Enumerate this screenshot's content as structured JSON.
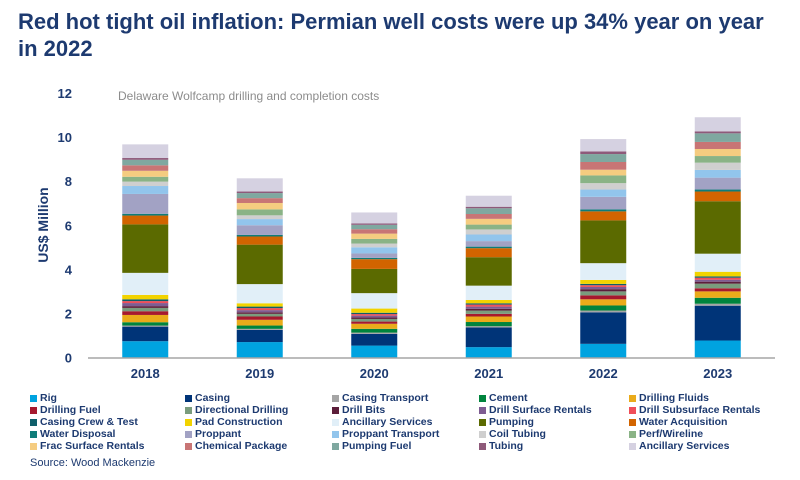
{
  "title": "Red hot tight oil inflation: Permian well costs were up 34% year on year in 2022",
  "source": "Source: Wood Mackenzie",
  "chart_data": {
    "type": "bar",
    "stacked": true,
    "title": "Delaware Wolfcamp drilling and completion costs",
    "xlabel": "",
    "ylabel": "US$ Million",
    "ylim": [
      0,
      12
    ],
    "yticks": [
      0,
      2,
      4,
      6,
      8,
      10,
      12
    ],
    "categories": [
      "2018",
      "2019",
      "2020",
      "2021",
      "2022",
      "2023"
    ],
    "legend_position": "bottom",
    "series": [
      {
        "name": "Rig",
        "color": "#00A3E0",
        "values": [
          0.74,
          0.7,
          0.54,
          0.47,
          0.62,
          0.77
        ]
      },
      {
        "name": "Casing",
        "color": "#003478",
        "values": [
          0.66,
          0.55,
          0.53,
          0.89,
          1.43,
          1.58
        ]
      },
      {
        "name": "Casing Transport",
        "color": "#A5A5A5",
        "values": [
          0.05,
          0.05,
          0.06,
          0.06,
          0.08,
          0.09
        ]
      },
      {
        "name": "Cement",
        "color": "#00843D",
        "values": [
          0.15,
          0.15,
          0.17,
          0.19,
          0.23,
          0.27
        ]
      },
      {
        "name": "Drilling Fluids",
        "color": "#EAAB1A",
        "values": [
          0.33,
          0.26,
          0.23,
          0.25,
          0.28,
          0.29
        ]
      },
      {
        "name": "Drilling Fuel",
        "color": "#A6192E",
        "values": [
          0.17,
          0.15,
          0.1,
          0.12,
          0.18,
          0.14
        ]
      },
      {
        "name": "Directional Drilling",
        "color": "#7A9C7D",
        "values": [
          0.15,
          0.12,
          0.12,
          0.15,
          0.18,
          0.21
        ]
      },
      {
        "name": "Drill Bits",
        "color": "#5C1E3A",
        "values": [
          0.08,
          0.07,
          0.07,
          0.08,
          0.1,
          0.09
        ]
      },
      {
        "name": "Drill Surface Rentals",
        "color": "#7E5C92",
        "values": [
          0.14,
          0.1,
          0.08,
          0.1,
          0.1,
          0.09
        ]
      },
      {
        "name": "Drill Subsurface Rentals",
        "color": "#F04E58",
        "values": [
          0.09,
          0.09,
          0.07,
          0.09,
          0.08,
          0.09
        ]
      },
      {
        "name": "Casing Crew & Test",
        "color": "#0F5F6A",
        "values": [
          0.08,
          0.07,
          0.06,
          0.06,
          0.06,
          0.06
        ]
      },
      {
        "name": "Pad Construction",
        "color": "#F2D300",
        "values": [
          0.2,
          0.15,
          0.19,
          0.15,
          0.18,
          0.21
        ]
      },
      {
        "name": "Ancillary Services",
        "color": "#E1EFF8",
        "values": [
          1.0,
          0.87,
          0.7,
          0.65,
          0.76,
          0.82
        ]
      },
      {
        "name": "Pumping",
        "color": "#5B6A00",
        "values": [
          2.2,
          1.79,
          1.1,
          1.29,
          1.94,
          2.38
        ]
      },
      {
        "name": "Water Acquisition",
        "color": "#D26400",
        "values": [
          0.4,
          0.37,
          0.44,
          0.41,
          0.41,
          0.44
        ]
      },
      {
        "name": "Water Disposal",
        "color": "#0E7C78",
        "values": [
          0.08,
          0.07,
          0.06,
          0.07,
          0.09,
          0.09
        ]
      },
      {
        "name": "Proppant",
        "color": "#A2A2C4",
        "values": [
          0.9,
          0.44,
          0.2,
          0.25,
          0.57,
          0.54
        ]
      },
      {
        "name": "Proppant Transport",
        "color": "#92C5EC",
        "values": [
          0.36,
          0.28,
          0.28,
          0.3,
          0.33,
          0.35
        ]
      },
      {
        "name": "Coil Tubing",
        "color": "#CFCFCF",
        "values": [
          0.2,
          0.17,
          0.17,
          0.23,
          0.29,
          0.33
        ]
      },
      {
        "name": "Perf/Wireline",
        "color": "#8AB386",
        "values": [
          0.22,
          0.27,
          0.21,
          0.22,
          0.35,
          0.3
        ]
      },
      {
        "name": "Frac Surface Rentals",
        "color": "#F5CC80",
        "values": [
          0.27,
          0.29,
          0.24,
          0.26,
          0.26,
          0.32
        ]
      },
      {
        "name": "Chemical Package",
        "color": "#C87575",
        "values": [
          0.25,
          0.22,
          0.2,
          0.22,
          0.35,
          0.32
        ]
      },
      {
        "name": "Pumping Fuel",
        "color": "#7FA8A0",
        "values": [
          0.25,
          0.23,
          0.2,
          0.26,
          0.36,
          0.39
        ]
      },
      {
        "name": "Tubing",
        "color": "#8E5A7A",
        "values": [
          0.08,
          0.07,
          0.06,
          0.07,
          0.12,
          0.09
        ]
      },
      {
        "name": "Ancillary Services",
        "color": "#D5D1E1",
        "values": [
          0.62,
          0.6,
          0.5,
          0.5,
          0.56,
          0.64
        ]
      }
    ]
  }
}
